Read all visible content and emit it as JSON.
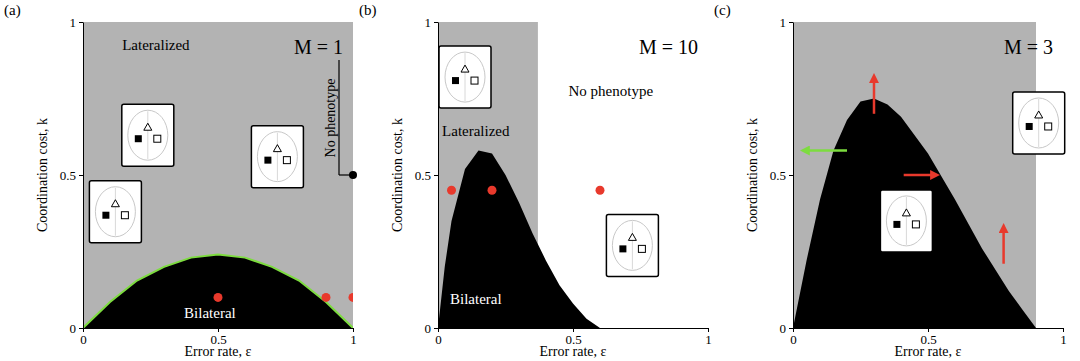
{
  "chart_data": [
    {
      "type": "area",
      "panel_label": "(a)",
      "title": "M = 1",
      "x_label": "Error rate, ε",
      "y_label": "Coordination cost, k",
      "xlim": [
        0,
        1
      ],
      "ylim": [
        0,
        1
      ],
      "xticks": [
        0,
        0.5,
        1
      ],
      "yticks": [
        0,
        0.5,
        1
      ],
      "series": [
        {
          "type": "area",
          "color": "#b3b3b3",
          "x": [
            0,
            1
          ],
          "values": [
            1,
            1
          ]
        },
        {
          "type": "area",
          "color": "#000000",
          "x": [
            0,
            0.1,
            0.2,
            0.3,
            0.4,
            0.5,
            0.6,
            0.7,
            0.8,
            0.9,
            1
          ],
          "values": [
            0,
            0.085,
            0.155,
            0.2,
            0.23,
            0.24,
            0.23,
            0.2,
            0.155,
            0.085,
            0
          ]
        },
        {
          "type": "line",
          "color": "#7ddc3f",
          "x": [
            0,
            0.1,
            0.2,
            0.3,
            0.4,
            0.5,
            0.6,
            0.7,
            0.8,
            0.9,
            1
          ],
          "values": [
            0,
            0.085,
            0.155,
            0.2,
            0.23,
            0.24,
            0.23,
            0.2,
            0.155,
            0.085,
            0
          ]
        },
        {
          "type": "scatter",
          "color": "#e8392c",
          "x": [
            0.5,
            0.9,
            1
          ],
          "values": [
            0.1,
            0.1,
            0.1
          ]
        }
      ],
      "annotations": [
        {
          "text": "Lateralized",
          "x": 0.27,
          "y": 0.92,
          "color": "#000000"
        },
        {
          "text": "Bilateral",
          "x": 0.47,
          "y": 0.045,
          "color": "#ffffff"
        }
      ],
      "pointer": {
        "text": "No phenotype",
        "x": 1,
        "y": 0.5
      },
      "insets": [
        {
          "x": 0.24,
          "y": 0.63
        },
        {
          "x": 0.12,
          "y": 0.38
        },
        {
          "x": 0.72,
          "y": 0.56
        }
      ],
      "arrows": []
    },
    {
      "type": "area",
      "panel_label": "(b)",
      "title": "M = 10",
      "x_label": "Error rate, ε",
      "y_label": "Coordination cost, k",
      "xlim": [
        0,
        1
      ],
      "ylim": [
        0,
        1
      ],
      "xticks": [
        0,
        0.5,
        1
      ],
      "yticks": [
        0,
        0.5,
        1
      ],
      "series": [
        {
          "type": "area",
          "color": "#b3b3b3",
          "x": [
            0,
            0.37
          ],
          "values": [
            1,
            1
          ]
        },
        {
          "type": "area",
          "color": "#000000",
          "x": [
            0,
            0.025,
            0.05,
            0.1,
            0.15,
            0.2,
            0.25,
            0.3,
            0.35,
            0.4,
            0.45,
            0.5,
            0.55,
            0.6
          ],
          "values": [
            0,
            0.2,
            0.35,
            0.52,
            0.58,
            0.57,
            0.5,
            0.41,
            0.31,
            0.22,
            0.14,
            0.08,
            0.03,
            0
          ]
        },
        {
          "type": "scatter",
          "color": "#e8392c",
          "x": [
            0.05,
            0.2,
            0.6
          ],
          "values": [
            0.45,
            0.45,
            0.45
          ]
        }
      ],
      "annotations": [
        {
          "text": "Lateralized",
          "x": 0.14,
          "y": 0.64,
          "color": "#000000"
        },
        {
          "text": "No phenotype",
          "x": 0.64,
          "y": 0.77,
          "color": "#000000"
        },
        {
          "text": "Bilateral",
          "x": 0.14,
          "y": 0.09,
          "color": "#ffffff"
        }
      ],
      "insets": [
        {
          "x": 0.1,
          "y": 0.82
        },
        {
          "x": 0.72,
          "y": 0.27
        }
      ],
      "arrows": []
    },
    {
      "type": "area",
      "panel_label": "(c)",
      "title": "M = 3",
      "x_label": "Error rate, ε",
      "y_label": "Coordination cost, k",
      "xlim": [
        0,
        1
      ],
      "ylim": [
        0,
        1
      ],
      "xticks": [
        0,
        0.5,
        1
      ],
      "yticks": [
        0,
        0.5,
        1
      ],
      "series": [
        {
          "type": "area",
          "color": "#b3b3b3",
          "x": [
            0,
            0.9
          ],
          "values": [
            1,
            1
          ]
        },
        {
          "type": "area",
          "color": "#000000",
          "x": [
            0,
            0.05,
            0.1,
            0.15,
            0.2,
            0.25,
            0.3,
            0.35,
            0.4,
            0.5,
            0.6,
            0.7,
            0.8,
            0.85,
            0.9
          ],
          "values": [
            0,
            0.22,
            0.42,
            0.58,
            0.68,
            0.74,
            0.75,
            0.73,
            0.69,
            0.57,
            0.42,
            0.26,
            0.12,
            0.06,
            0
          ]
        }
      ],
      "annotations": [],
      "insets": [
        {
          "x": 0.91,
          "y": 0.67
        },
        {
          "x": 0.42,
          "y": 0.35
        }
      ],
      "arrows": [
        {
          "x": 0.3,
          "y": 0.7,
          "x2": 0.3,
          "y2": 0.82,
          "color": "#e8392c"
        },
        {
          "x": 0.41,
          "y": 0.5,
          "x2": 0.53,
          "y2": 0.5,
          "color": "#e8392c"
        },
        {
          "x": 0.78,
          "y": 0.21,
          "x2": 0.78,
          "y2": 0.33,
          "color": "#e8392c"
        },
        {
          "x": 0.2,
          "y": 0.58,
          "x2": 0.04,
          "y2": 0.58,
          "color": "#7ddc3f"
        }
      ]
    }
  ]
}
